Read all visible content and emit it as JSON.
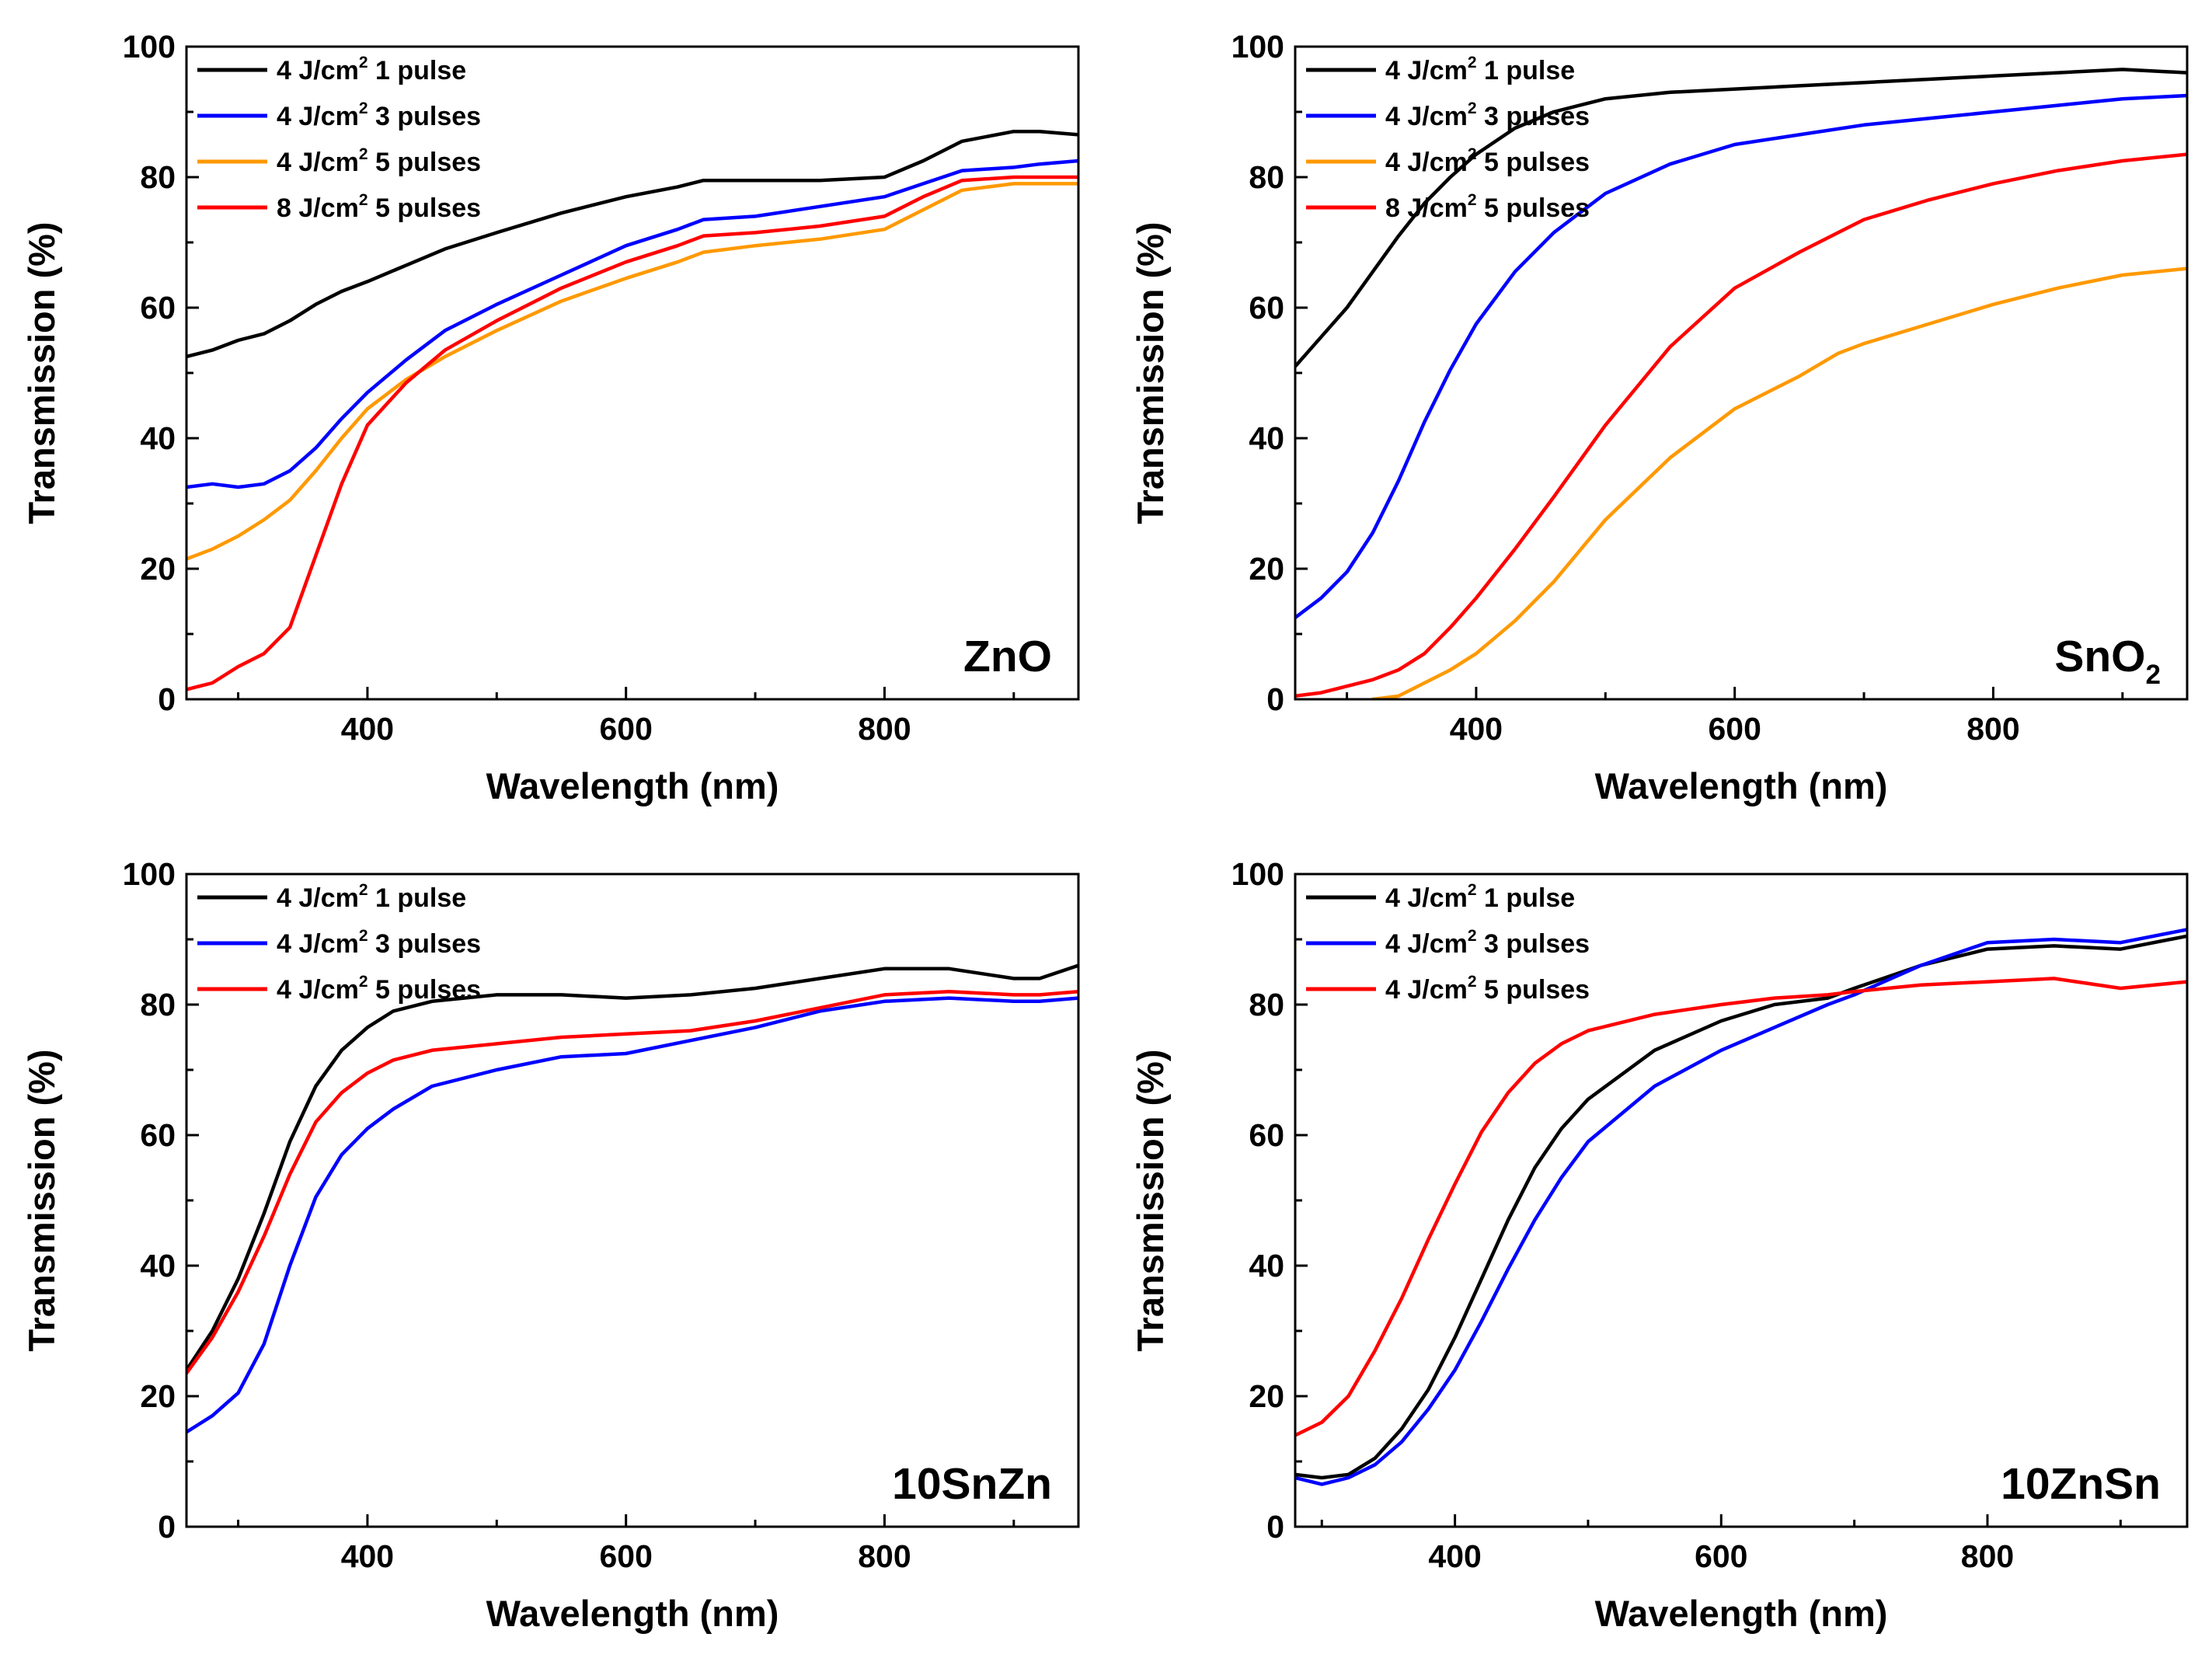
{
  "figure": {
    "panel_count": 4
  },
  "chart_data": [
    {
      "type": "line",
      "panel": "top-left",
      "annotation": "ZnO",
      "annotation_subscript": "",
      "xlabel": "Wavelength (nm)",
      "ylabel": "Transmission (%)",
      "xlim": [
        260,
        950
      ],
      "ylim": [
        0,
        100
      ],
      "xticks": [
        400,
        600,
        800
      ],
      "yticks": [
        0,
        20,
        40,
        60,
        80,
        100
      ],
      "grid": false,
      "legend_position": "top-left",
      "series": [
        {
          "name": "4 J/cm2 1 pulse",
          "legend_prefix": "4 J/cm",
          "legend_sup": "2",
          "legend_suffix": " 1 pulse",
          "color": "#000000",
          "x": [
            260,
            280,
            300,
            320,
            340,
            360,
            380,
            400,
            430,
            460,
            500,
            550,
            600,
            640,
            660,
            700,
            750,
            800,
            830,
            860,
            900,
            920,
            950
          ],
          "y": [
            52.5,
            53.5,
            55,
            56,
            58,
            60.5,
            62.5,
            64,
            66.5,
            69,
            71.5,
            74.5,
            77,
            78.5,
            79.5,
            79.5,
            79.5,
            80,
            82.5,
            85.5,
            87,
            87,
            86.5
          ]
        },
        {
          "name": "4 J/cm2 3 pulses",
          "legend_prefix": "4 J/cm",
          "legend_sup": "2",
          "legend_suffix": " 3 pulses",
          "color": "#0000ff",
          "x": [
            260,
            280,
            300,
            320,
            340,
            360,
            380,
            400,
            430,
            460,
            500,
            550,
            600,
            640,
            660,
            700,
            750,
            800,
            830,
            860,
            900,
            920,
            950
          ],
          "y": [
            32.5,
            33,
            32.5,
            33,
            35,
            38.5,
            43,
            47,
            52,
            56.5,
            60.5,
            65,
            69.5,
            72,
            73.5,
            74,
            75.5,
            77,
            79,
            81,
            81.5,
            82,
            82.5
          ]
        },
        {
          "name": "4 J/cm2 5 pulses",
          "legend_prefix": "4 J/cm",
          "legend_sup": "2",
          "legend_suffix": " 5 pulses",
          "color": "#ff9900",
          "x": [
            260,
            280,
            300,
            320,
            340,
            360,
            380,
            400,
            430,
            460,
            500,
            550,
            600,
            640,
            660,
            700,
            750,
            800,
            830,
            860,
            900,
            920,
            950
          ],
          "y": [
            21.5,
            23,
            25,
            27.5,
            30.5,
            35,
            40,
            44.5,
            49,
            52.5,
            56.5,
            61,
            64.5,
            67,
            68.5,
            69.5,
            70.5,
            72,
            75,
            78,
            79,
            79,
            79
          ]
        },
        {
          "name": "8 J/cm2 5 pulses",
          "legend_prefix": "8 J/cm",
          "legend_sup": "2",
          "legend_suffix": " 5 pulses",
          "color": "#ff0000",
          "x": [
            260,
            280,
            300,
            320,
            340,
            360,
            380,
            400,
            430,
            460,
            500,
            550,
            600,
            640,
            660,
            700,
            750,
            800,
            830,
            860,
            900,
            920,
            950
          ],
          "y": [
            1.5,
            2.5,
            5,
            7,
            11,
            22,
            33,
            42,
            48.5,
            53.5,
            58,
            63,
            67,
            69.5,
            71,
            71.5,
            72.5,
            74,
            77,
            79.5,
            80,
            80,
            80
          ]
        }
      ]
    },
    {
      "type": "line",
      "panel": "top-right",
      "annotation": "SnO",
      "annotation_subscript": "2",
      "xlabel": "Wavelength (nm)",
      "ylabel": "Transmission (%)",
      "xlim": [
        260,
        950
      ],
      "ylim": [
        0,
        100
      ],
      "xticks": [
        400,
        600,
        800
      ],
      "yticks": [
        0,
        20,
        40,
        60,
        80,
        100
      ],
      "grid": false,
      "legend_position": "top-left",
      "series": [
        {
          "name": "4 J/cm2 1 pulse",
          "legend_prefix": "4 J/cm",
          "legend_sup": "2",
          "legend_suffix": " 1 pulse",
          "color": "#000000",
          "x": [
            260,
            280,
            300,
            320,
            340,
            360,
            380,
            400,
            430,
            460,
            500,
            550,
            600,
            650,
            700,
            750,
            800,
            850,
            900,
            950
          ],
          "y": [
            51,
            55.5,
            60,
            65.5,
            71,
            76,
            80,
            83.5,
            87.5,
            90,
            92,
            93,
            93.5,
            94,
            94.5,
            95,
            95.5,
            96,
            96.5,
            96
          ]
        },
        {
          "name": "4 J/cm2 3 pulses",
          "legend_prefix": "4 J/cm",
          "legend_sup": "2",
          "legend_suffix": " 3 pulses",
          "color": "#0000ff",
          "x": [
            260,
            280,
            300,
            320,
            340,
            360,
            380,
            400,
            430,
            460,
            500,
            550,
            600,
            650,
            700,
            750,
            800,
            850,
            900,
            950
          ],
          "y": [
            12.5,
            15.5,
            19.5,
            25.5,
            33.5,
            42.5,
            50.5,
            57.5,
            65.5,
            71.5,
            77.5,
            82,
            85,
            86.5,
            88,
            89,
            90,
            91,
            92,
            92.5
          ]
        },
        {
          "name": "4 J/cm2 5 pulses",
          "legend_prefix": "4 J/cm",
          "legend_sup": "2",
          "legend_suffix": " 5 pulses",
          "color": "#ff9900",
          "x": [
            320,
            340,
            360,
            380,
            400,
            430,
            460,
            500,
            550,
            600,
            650,
            680,
            700,
            750,
            800,
            850,
            900,
            950
          ],
          "y": [
            0,
            0.5,
            2.5,
            4.5,
            7,
            12,
            18,
            27.5,
            37,
            44.5,
            49.5,
            53,
            54.5,
            57.5,
            60.5,
            63,
            65,
            66
          ]
        },
        {
          "name": "8 J/cm2 5 pulses",
          "legend_prefix": "8 J/cm",
          "legend_sup": "2",
          "legend_suffix": " 5 pulses",
          "color": "#ff0000",
          "x": [
            260,
            280,
            300,
            320,
            340,
            360,
            380,
            400,
            430,
            460,
            500,
            550,
            600,
            650,
            680,
            700,
            750,
            800,
            850,
            900,
            950
          ],
          "y": [
            0.5,
            1,
            2,
            3,
            4.5,
            7,
            11,
            15.5,
            23,
            31,
            42,
            54,
            63,
            68.5,
            71.5,
            73.5,
            76.5,
            79,
            81,
            82.5,
            83.5
          ]
        }
      ]
    },
    {
      "type": "line",
      "panel": "bottom-left",
      "annotation": "10SnZn",
      "annotation_subscript": "",
      "xlabel": "Wavelength (nm)",
      "ylabel": "Transmission (%)",
      "xlim": [
        260,
        950
      ],
      "ylim": [
        0,
        100
      ],
      "xticks": [
        400,
        600,
        800
      ],
      "yticks": [
        0,
        20,
        40,
        60,
        80,
        100
      ],
      "grid": false,
      "legend_position": "top-left",
      "series": [
        {
          "name": "4 J/cm2 1 pulse",
          "legend_prefix": "4 J/cm",
          "legend_sup": "2",
          "legend_suffix": " 1 pulse",
          "color": "#000000",
          "x": [
            260,
            280,
            300,
            320,
            340,
            360,
            380,
            400,
            420,
            450,
            500,
            550,
            600,
            650,
            700,
            750,
            800,
            850,
            900,
            920,
            950
          ],
          "y": [
            24,
            30,
            38,
            48,
            59,
            67.5,
            73,
            76.5,
            79,
            80.5,
            81.5,
            81.5,
            81,
            81.5,
            82.5,
            84,
            85.5,
            85.5,
            84,
            84,
            86
          ]
        },
        {
          "name": "4 J/cm2 3 pulses",
          "legend_prefix": "4 J/cm",
          "legend_sup": "2",
          "legend_suffix": " 3 pulses",
          "color": "#0000ff",
          "x": [
            260,
            280,
            300,
            320,
            340,
            360,
            380,
            400,
            420,
            450,
            500,
            550,
            600,
            650,
            700,
            750,
            800,
            850,
            900,
            920,
            950
          ],
          "y": [
            14.5,
            17,
            20.5,
            28,
            40,
            50.5,
            57,
            61,
            64,
            67.5,
            70,
            72,
            72.5,
            74.5,
            76.5,
            79,
            80.5,
            81,
            80.5,
            80.5,
            81
          ]
        },
        {
          "name": "4 J/cm2 5 pulses",
          "legend_prefix": "4 J/cm",
          "legend_sup": "2",
          "legend_suffix": " 5 pulses",
          "color": "#ff0000",
          "x": [
            260,
            280,
            300,
            320,
            340,
            360,
            380,
            400,
            420,
            450,
            500,
            550,
            600,
            650,
            700,
            750,
            800,
            850,
            900,
            920,
            950
          ],
          "y": [
            23.5,
            29,
            36,
            44.5,
            54,
            62,
            66.5,
            69.5,
            71.5,
            73,
            74,
            75,
            75.5,
            76,
            77.5,
            79.5,
            81.5,
            82,
            81.5,
            81.5,
            82
          ]
        }
      ]
    },
    {
      "type": "line",
      "panel": "bottom-right",
      "annotation": "10ZnSn",
      "annotation_subscript": "",
      "xlabel": "Wavelength (nm)",
      "ylabel": "Transmission (%)",
      "xlim": [
        280,
        950
      ],
      "ylim": [
        0,
        100
      ],
      "xticks": [
        400,
        600,
        800
      ],
      "yticks": [
        0,
        20,
        40,
        60,
        80,
        100
      ],
      "grid": false,
      "legend_position": "top-left",
      "series": [
        {
          "name": "4 J/cm2 1 pulse",
          "legend_prefix": "4 J/cm",
          "legend_sup": "2",
          "legend_suffix": " 1 pulse",
          "color": "#000000",
          "x": [
            280,
            300,
            320,
            340,
            360,
            380,
            400,
            420,
            440,
            460,
            480,
            500,
            550,
            600,
            640,
            680,
            700,
            750,
            800,
            850,
            900,
            950
          ],
          "y": [
            8,
            7.5,
            8,
            10.5,
            15,
            21,
            29,
            38,
            47,
            55,
            61,
            65.5,
            73,
            77.5,
            80,
            81,
            82.5,
            86,
            88.5,
            89,
            88.5,
            90.5
          ]
        },
        {
          "name": "4 J/cm2 3 pulses",
          "legend_prefix": "4 J/cm",
          "legend_sup": "2",
          "legend_suffix": " 3 pulses",
          "color": "#0000ff",
          "x": [
            280,
            300,
            320,
            340,
            360,
            380,
            400,
            420,
            440,
            460,
            480,
            500,
            550,
            600,
            640,
            680,
            700,
            750,
            800,
            850,
            900,
            950
          ],
          "y": [
            7.5,
            6.5,
            7.5,
            9.5,
            13,
            18,
            24,
            31.5,
            39.5,
            47,
            53.5,
            59,
            67.5,
            73,
            76.5,
            80,
            81.5,
            86,
            89.5,
            90,
            89.5,
            91.5
          ]
        },
        {
          "name": "4 J/cm2 5 pulses",
          "legend_prefix": "4 J/cm",
          "legend_sup": "2",
          "legend_suffix": " 5 pulses",
          "color": "#ff0000",
          "x": [
            280,
            300,
            320,
            340,
            360,
            380,
            400,
            420,
            440,
            460,
            480,
            500,
            550,
            600,
            640,
            680,
            700,
            750,
            800,
            850,
            900,
            950
          ],
          "y": [
            14,
            16,
            20,
            27,
            35,
            44,
            52.5,
            60.5,
            66.5,
            71,
            74,
            76,
            78.5,
            80,
            81,
            81.5,
            82,
            83,
            83.5,
            84,
            82.5,
            83.5
          ]
        }
      ]
    }
  ]
}
